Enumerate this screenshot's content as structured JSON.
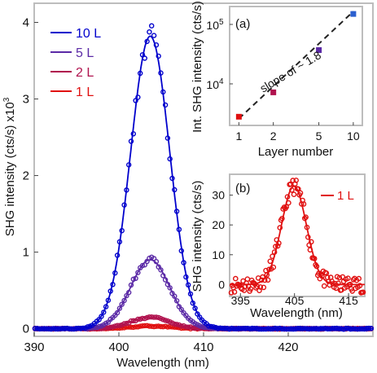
{
  "chart_data": [
    {
      "type": "scatter",
      "title": "",
      "xlabel": "Wavelength (nm)",
      "ylabel": "SHG intensity (cts/s) x10",
      "ylabel_exponent": "3",
      "xlim": [
        390,
        430
      ],
      "ylim": [
        -0.1,
        4.25
      ],
      "xticks": [
        "390",
        "400",
        "410",
        "420"
      ],
      "yticks": [
        "0",
        "1",
        "2",
        "3",
        "4"
      ],
      "legend_placement": "top-left",
      "series": [
        {
          "name": "10 L",
          "color": "#0000cc",
          "fit": {
            "peak": 3.82,
            "center": 403.7,
            "sigma": 2.3
          }
        },
        {
          "name": "5 L",
          "color": "#5b2aa6",
          "fit": {
            "peak": 0.9,
            "center": 403.7,
            "sigma": 2.3
          }
        },
        {
          "name": "2 L",
          "color": "#b0124e",
          "fit": {
            "peak": 0.15,
            "center": 403.7,
            "sigma": 2.3
          }
        },
        {
          "name": "1 L",
          "color": "#e01010",
          "fit": {
            "peak": 0.035,
            "center": 403.7,
            "sigma": 2.3
          }
        }
      ]
    },
    {
      "type": "scatter",
      "panel_label": "(a)",
      "xlabel": "Layer number",
      "ylabel": "Int. SHG intensity (cts/s)",
      "x_scale": "log",
      "y_scale": "log",
      "xlim": [
        0.83,
        12
      ],
      "ylim": [
        2000,
        200000
      ],
      "xticks": [
        "1",
        "2",
        "5",
        "10"
      ],
      "yticks": [
        {
          "base": "10",
          "exp": "4"
        },
        {
          "base": "10",
          "exp": "5"
        }
      ],
      "annotation": "slope of ~ 1.8",
      "points": [
        {
          "x": 1,
          "y": 2800,
          "color": "#e01010"
        },
        {
          "x": 2,
          "y": 7200,
          "color": "#b0124e"
        },
        {
          "x": 5,
          "y": 37000,
          "color": "#5b2aa6"
        },
        {
          "x": 10,
          "y": 150000,
          "color": "#2a5fcf"
        }
      ],
      "fit_line": {
        "x": [
          1,
          10
        ],
        "y": [
          2600,
          165000
        ],
        "style": "dashed"
      }
    },
    {
      "type": "scatter",
      "panel_label": "(b)",
      "xlabel": "Wavelength (nm)",
      "ylabel": "SHG intensity (cts/s)",
      "xlim": [
        393,
        418
      ],
      "ylim": [
        -4,
        37
      ],
      "xticks": [
        "395",
        "405",
        "415"
      ],
      "yticks": [
        "0",
        "10",
        "20",
        "30"
      ],
      "series": [
        {
          "name": "1 L",
          "color": "#e01010",
          "fit": {
            "peak": 33,
            "center": 404.9,
            "sigma": 2.3
          }
        }
      ]
    }
  ]
}
